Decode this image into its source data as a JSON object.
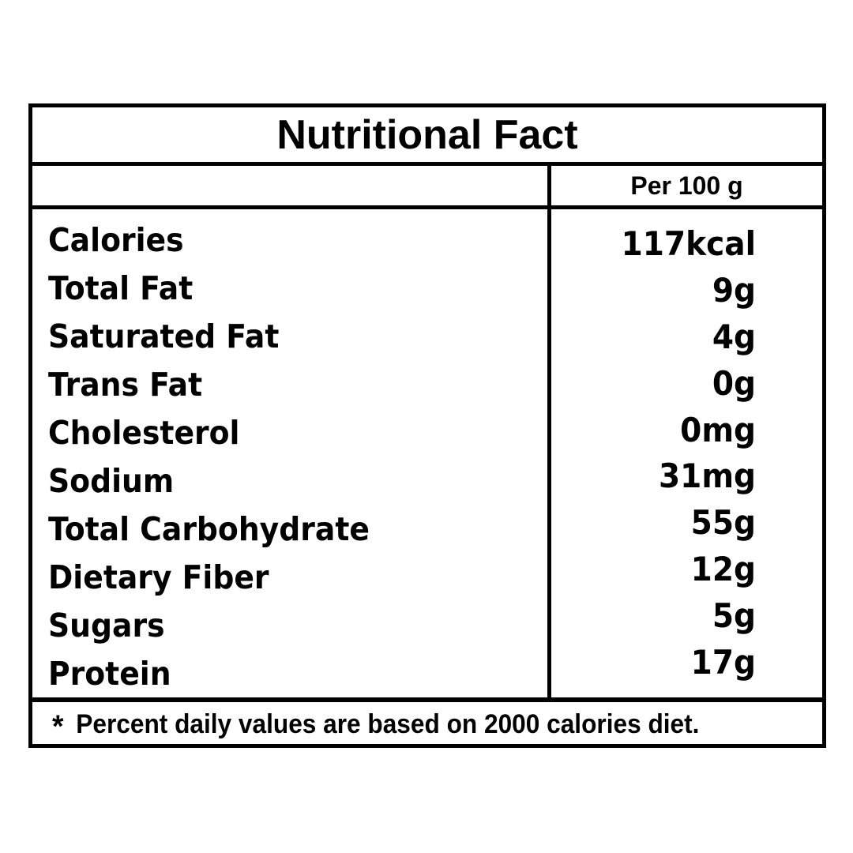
{
  "label": {
    "title": "Nutritional Fact",
    "column_header": "Per 100 g",
    "rows": [
      {
        "label": "Calories",
        "value": "117kcal"
      },
      {
        "label": "Total Fat",
        "value": "9g"
      },
      {
        "label": "Saturated Fat",
        "value": "4g"
      },
      {
        "label": "Trans Fat",
        "value": "0g"
      },
      {
        "label": "Cholesterol",
        "value": "0mg"
      },
      {
        "label": "Sodium",
        "value": "31mg"
      },
      {
        "label": "Total Carbohydrate",
        "value": "55g"
      },
      {
        "label": "Dietary Fiber",
        "value": "12g"
      },
      {
        "label": "Sugars",
        "value": "5g"
      },
      {
        "label": "Protein",
        "value": "17g"
      }
    ],
    "footnote_marker": "*",
    "footnote_text": "Percent daily values are based on 2000 calories diet."
  },
  "colors": {
    "border": "#000000",
    "text": "#000000",
    "background": "#ffffff"
  }
}
